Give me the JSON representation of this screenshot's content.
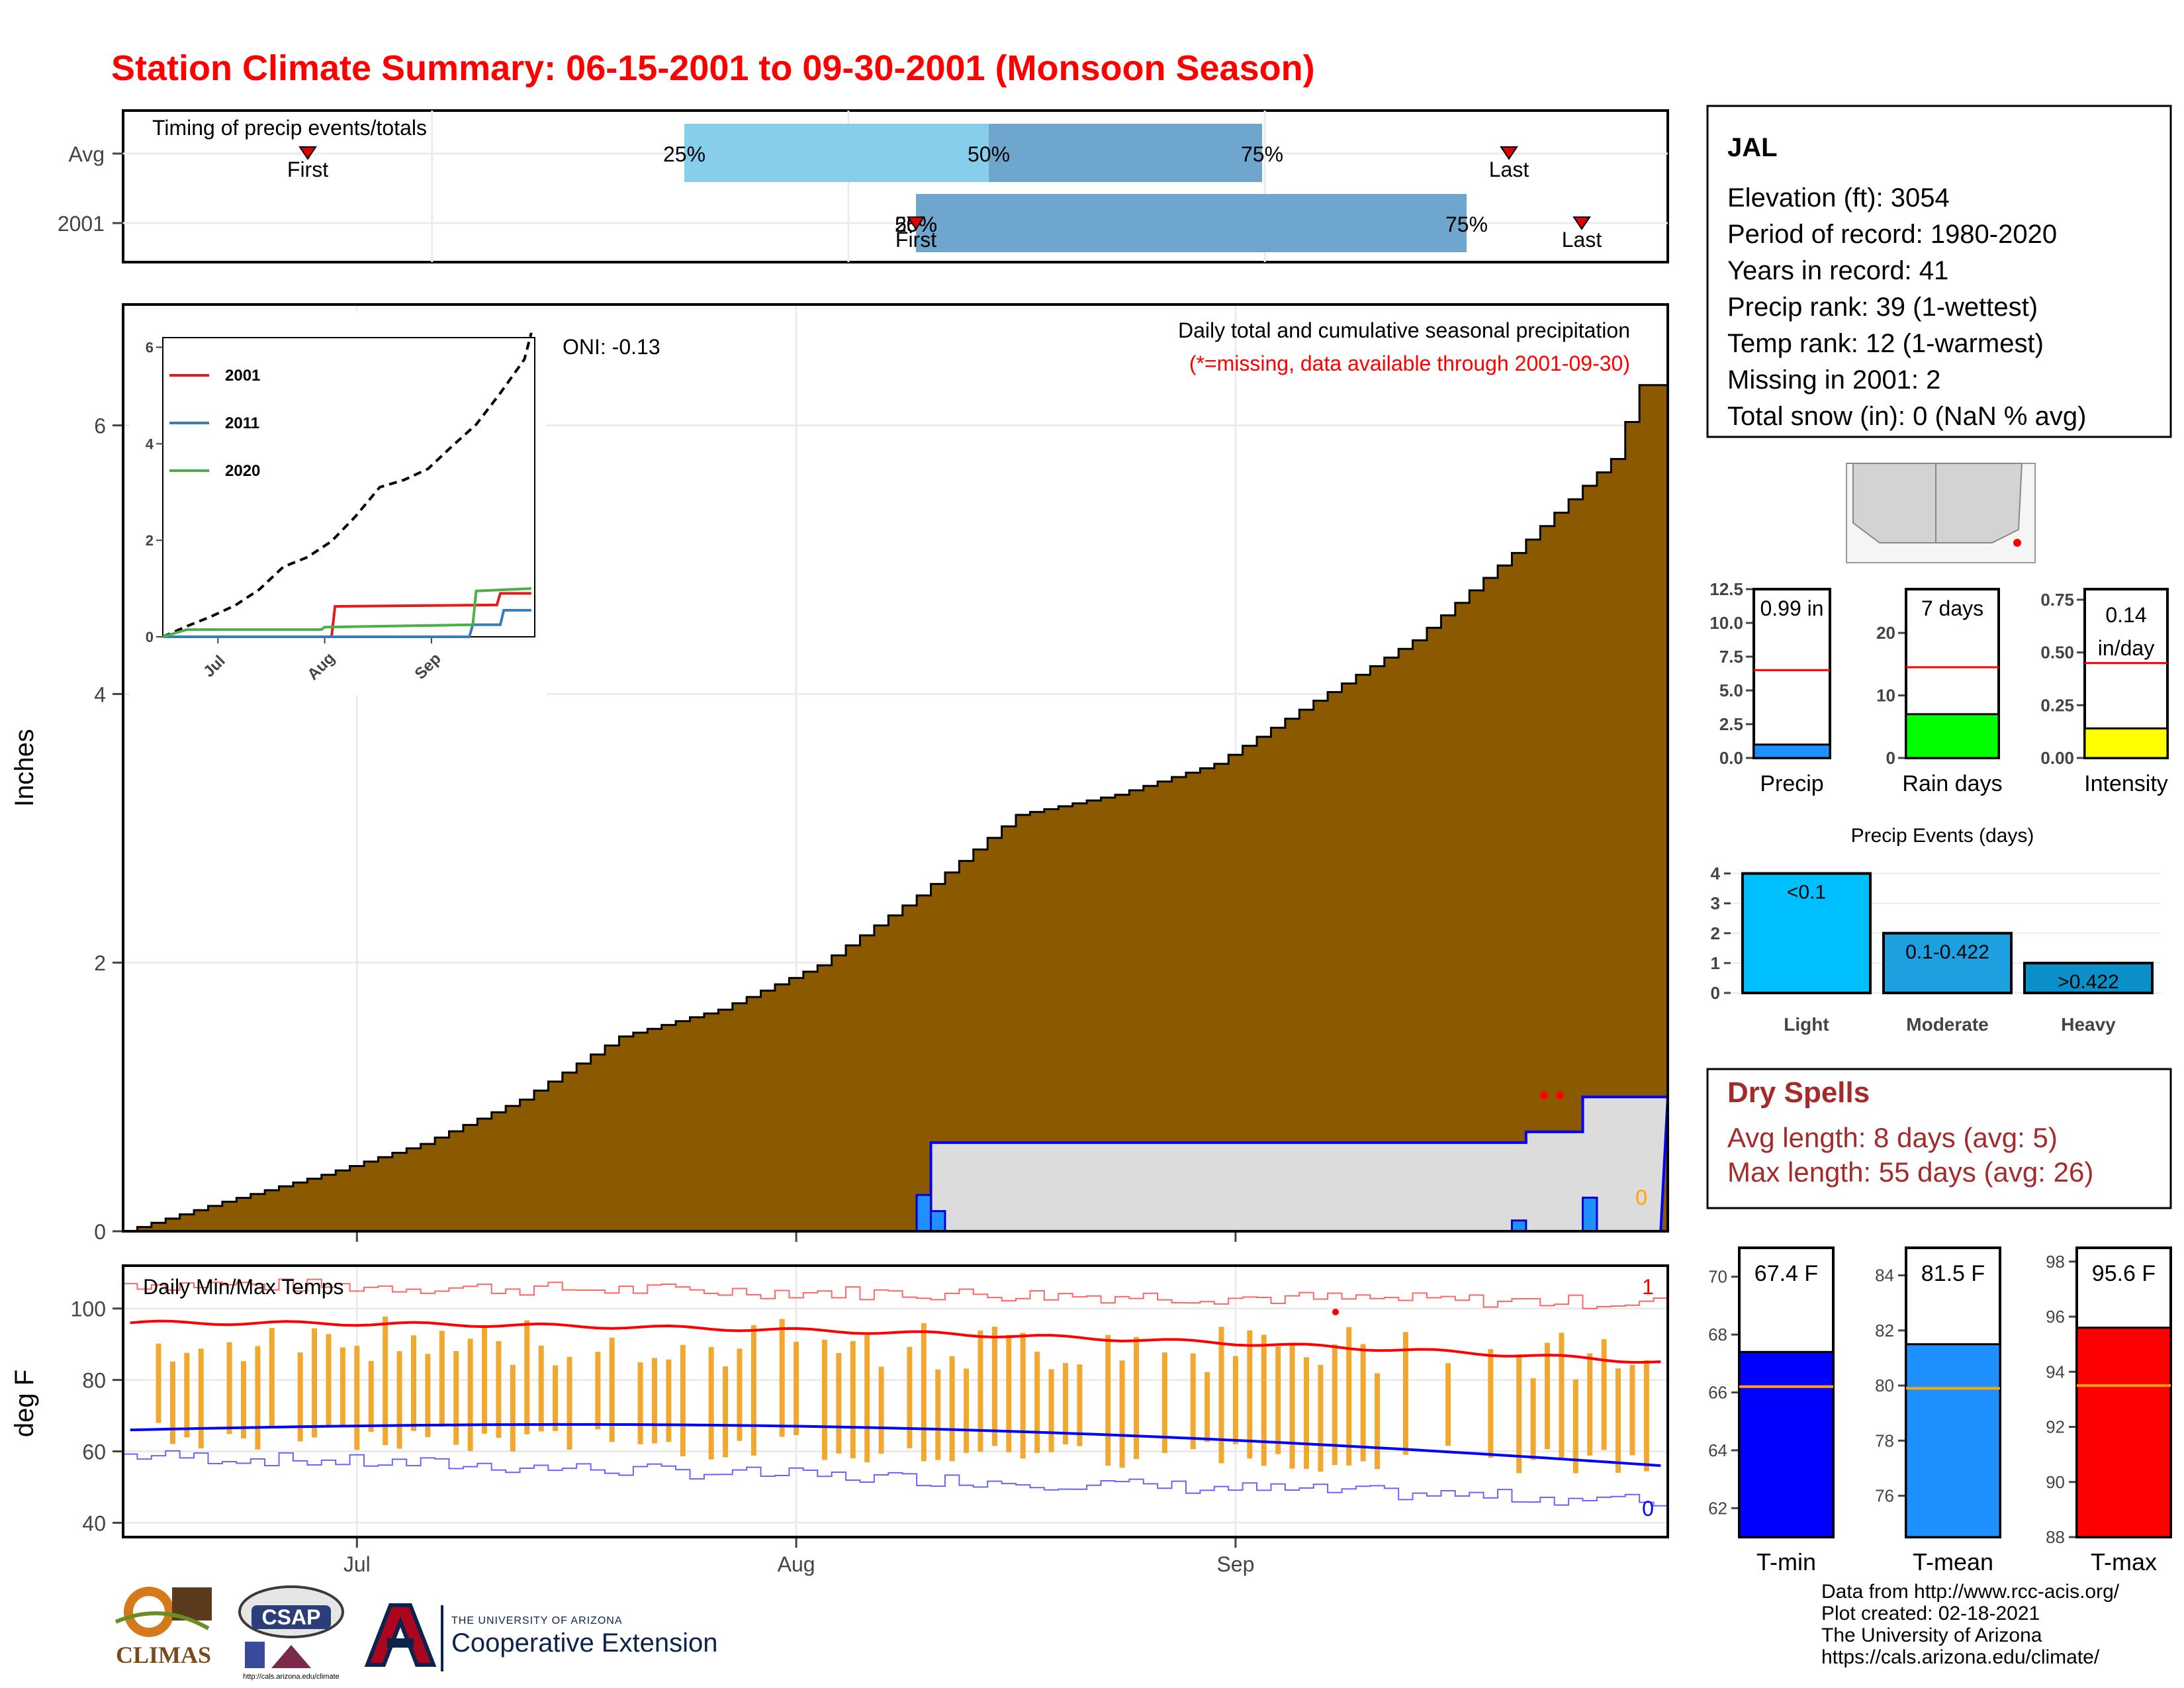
{
  "title": "Station Climate Summary: 06-15-2001 to 09-30-2001 (Monsoon Season)",
  "colors": {
    "title": "#ff0000",
    "precip_fill": "#8b5a00",
    "precip_2001": "#1e90ff",
    "normal_region": "#dcdcdc",
    "tmax_line": "#ff0000",
    "tmin_line": "#0000ff",
    "range_bar": "#f0a830",
    "light": "#00bfff",
    "moderate": "#1e9fe0",
    "heavy": "#0a8fc8",
    "precip_inset": "#1e90ff",
    "raindays": "#00ff00",
    "intensity": "#ffff00",
    "tmin_bar": "#0000ff",
    "tmean_bar": "#1e90ff",
    "tmax_bar": "#ff0000",
    "dry_spells": "#a52a2a"
  },
  "timing": {
    "title": "Timing of precip events/totals",
    "rows": [
      "Avg",
      "2001"
    ],
    "first_label": "First",
    "last_label": "Last",
    "pct_labels": [
      "25%",
      "50%",
      "75%"
    ]
  },
  "main_chart": {
    "ylabel": "Inches",
    "yticks": [
      "0",
      "2",
      "4",
      "6"
    ],
    "xticks": [
      "Jul",
      "Aug",
      "Sep"
    ],
    "oni": "ONI: -0.13",
    "caption": "Daily total and cumulative seasonal precipitation",
    "missing_note": "(*=missing, data available through 2001-09-30)",
    "zero_label": "0"
  },
  "chart_data": [
    {
      "type": "area",
      "name": "cumulative_precip",
      "x_start": "2001-06-15",
      "ylim": [
        0,
        6.9
      ],
      "series": [
        {
          "name": "avg_cumulative",
          "x": [
            "06-15",
            "06-22",
            "06-29",
            "07-06",
            "07-13",
            "07-20",
            "07-27",
            "08-03",
            "08-10",
            "08-17",
            "08-24",
            "08-31",
            "09-07",
            "09-14",
            "09-21",
            "09-28",
            "09-30"
          ],
          "values": [
            0.0,
            0.22,
            0.42,
            0.65,
            0.98,
            1.45,
            1.65,
            1.98,
            2.5,
            3.1,
            3.25,
            3.48,
            3.95,
            4.4,
            5.05,
            5.75,
            6.3
          ]
        },
        {
          "name": "2001_cumulative",
          "x": [
            "06-15",
            "08-10",
            "08-11",
            "09-22",
            "09-26",
            "09-30"
          ],
          "values": [
            0.0,
            0.0,
            0.66,
            0.74,
            1.0,
            1.0
          ]
        },
        {
          "name": "2001_daily",
          "x": [
            "08-10",
            "08-11",
            "09-21",
            "09-26"
          ],
          "values": [
            0.27,
            0.15,
            0.08,
            0.25
          ]
        }
      ]
    },
    {
      "type": "line",
      "name": "inset_cumulative",
      "yticks": [
        "0",
        "2",
        "4",
        "6"
      ],
      "xticks": [
        "Jul",
        "Aug",
        "Sep"
      ],
      "series": [
        {
          "name": "2001",
          "color": "#e41a1c",
          "x": [
            "06-15",
            "08-03",
            "08-04",
            "09-20",
            "09-21",
            "09-30"
          ],
          "values": [
            0.0,
            0.0,
            0.63,
            0.66,
            0.9,
            0.9
          ]
        },
        {
          "name": "2011",
          "color": "#377eb8",
          "x": [
            "06-15",
            "09-12",
            "09-13",
            "09-21",
            "09-22",
            "09-30"
          ],
          "values": [
            0.0,
            0.0,
            0.25,
            0.25,
            0.55,
            0.55
          ]
        },
        {
          "name": "2020",
          "color": "#4daf4a",
          "x": [
            "06-15",
            "06-22",
            "07-31",
            "08-01",
            "09-13",
            "09-14",
            "09-30"
          ],
          "values": [
            0.0,
            0.15,
            0.15,
            0.2,
            0.25,
            0.95,
            1.0
          ]
        }
      ]
    },
    {
      "type": "line",
      "name": "daily_temps",
      "title": "Daily Min/Max Temps",
      "ylabel": "deg F",
      "yticks": [
        "40",
        "60",
        "80",
        "100"
      ],
      "ylim": [
        36,
        112
      ],
      "record_high_count": "1",
      "record_low_count": "0",
      "series": [
        {
          "name": "avg_tmax",
          "values_start": 96,
          "values_end": 85
        },
        {
          "name": "avg_tmin",
          "values_start": 66,
          "values_end": 55
        }
      ]
    },
    {
      "type": "bar",
      "name": "precip_events",
      "title": "Precip Events (days)",
      "categories": [
        "Light",
        "Moderate",
        "Heavy"
      ],
      "bar_labels": [
        "<0.1",
        "0.1-0.422",
        ">0.422"
      ],
      "values": [
        4,
        2,
        1
      ],
      "yticks": [
        "0",
        "1",
        "2",
        "3",
        "4"
      ]
    },
    {
      "type": "bar",
      "name": "season_totals",
      "panels": [
        {
          "category": "Precip",
          "label": "0.99 in",
          "value": 0.99,
          "avg": 6.5,
          "yticks": [
            "0.0",
            "2.5",
            "5.0",
            "7.5",
            "10.0",
            "12.5"
          ],
          "ylim": [
            0,
            12.5
          ]
        },
        {
          "category": "Rain days",
          "label": "7 days",
          "value": 7,
          "avg": 14.5,
          "yticks": [
            "0",
            "10",
            "20"
          ],
          "ylim": [
            0,
            27
          ]
        },
        {
          "category": "Intensity",
          "label_line1": "0.14",
          "label_line2": "in/day",
          "value": 0.14,
          "avg": 0.45,
          "yticks": [
            "0.00",
            "0.25",
            "0.50",
            "0.75"
          ],
          "ylim": [
            0,
            0.8
          ]
        }
      ]
    },
    {
      "type": "bar",
      "name": "season_temps",
      "panels": [
        {
          "category": "T-min",
          "label": "67.4 F",
          "value": 67.4,
          "avg": 66.2,
          "yticks": [
            "62",
            "64",
            "66",
            "68",
            "70"
          ],
          "ylim": [
            61,
            71
          ]
        },
        {
          "category": "T-mean",
          "label": "81.5 F",
          "value": 81.5,
          "avg": 79.9,
          "yticks": [
            "76",
            "78",
            "80",
            "82",
            "84"
          ],
          "ylim": [
            74.5,
            85
          ]
        },
        {
          "category": "T-max",
          "label": "95.6 F",
          "value": 95.6,
          "avg": 93.5,
          "yticks": [
            "88",
            "90",
            "92",
            "94",
            "96",
            "98"
          ],
          "ylim": [
            88,
            98.5
          ]
        }
      ]
    }
  ],
  "station": {
    "name": "JAL",
    "elevation": "Elevation (ft): 3054",
    "period": "Period of record: 1980-2020",
    "years": "Years in record: 41",
    "precip_rank": "Precip rank: 39 (1-wettest)",
    "temp_rank": "Temp rank: 12 (1-warmest)",
    "missing": "Missing in 2001: 2",
    "snow": "Total snow (in): 0 (NaN % avg)"
  },
  "dry_spells": {
    "title": "Dry Spells",
    "avg": "Avg length: 8 days (avg: 5)",
    "max": "Max length: 55 days (avg: 26)"
  },
  "footer": {
    "line1": "Data from http://www.rcc-acis.org/",
    "line2": "Plot created: 02-18-2021",
    "line3": "The University of Arizona",
    "line4": "https://cals.arizona.edu/climate/"
  },
  "logos": {
    "climas": "CLIMAS",
    "csap": "CSAP",
    "csap_url": "http://cals.arizona.edu/climate",
    "ua_small": "THE UNIVERSITY OF ARIZONA",
    "ua_large": "Cooperative Extension"
  }
}
